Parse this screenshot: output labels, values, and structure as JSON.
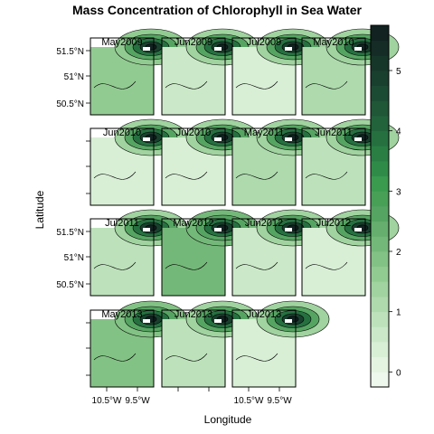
{
  "chart_data": {
    "type": "heatmap",
    "title": "Mass Concentration of Chlorophyll in Sea Water",
    "xlabel": "Longitude",
    "ylabel": "Latitude",
    "x_ticks": [
      "10.5°W",
      "9.5°W"
    ],
    "y_ticks": [
      "51.5°N",
      "51°N",
      "50.5°N"
    ],
    "colorbar": {
      "min": -0.25,
      "max": 5.75,
      "ticks": [
        0,
        1,
        2,
        3,
        4,
        5
      ],
      "levels": [
        -0.25,
        0.0,
        0.25,
        0.5,
        0.75,
        1.0,
        1.25,
        1.5,
        1.75,
        2.0,
        2.25,
        2.5,
        2.75,
        3.0,
        3.25,
        3.5,
        3.75,
        4.0,
        4.25,
        4.5,
        4.75,
        5.0,
        5.25,
        5.5,
        5.75
      ],
      "colors": [
        "#eef8ec",
        "#e4f4e1",
        "#d8efd5",
        "#cbe9c8",
        "#bde2bb",
        "#aedaad",
        "#a0d39f",
        "#92cb92",
        "#83c285",
        "#74b879",
        "#65ae6d",
        "#56a462",
        "#48a057",
        "#3a9a4e",
        "#2f8c48",
        "#2a7e44",
        "#267040",
        "#22633c",
        "#1f5737",
        "#1c4b33",
        "#19402e",
        "#16362a",
        "#142c25",
        "#112220"
      ]
    },
    "panels": [
      {
        "label": "May2009",
        "mean": 1.7
      },
      {
        "label": "Jun2009",
        "mean": 0.75
      },
      {
        "label": "Jul2009",
        "mean": 0.5
      },
      {
        "label": "May2010",
        "mean": 1.1
      },
      {
        "label": "Jun2010",
        "mean": 0.5
      },
      {
        "label": "Jul2010",
        "mean": 0.5
      },
      {
        "label": "May2011",
        "mean": 1.1
      },
      {
        "label": "Jun2011",
        "mean": 1.0
      },
      {
        "label": "Jul2011",
        "mean": 0.8
      },
      {
        "label": "May2012",
        "mean": 2.1
      },
      {
        "label": "Jun2012",
        "mean": 0.65
      },
      {
        "label": "Jul2012",
        "mean": 0.45
      },
      {
        "label": "May2013",
        "mean": 2.0
      },
      {
        "label": "Jun2013",
        "mean": 1.0
      },
      {
        "label": "Jul2013",
        "mean": 0.5
      }
    ]
  }
}
